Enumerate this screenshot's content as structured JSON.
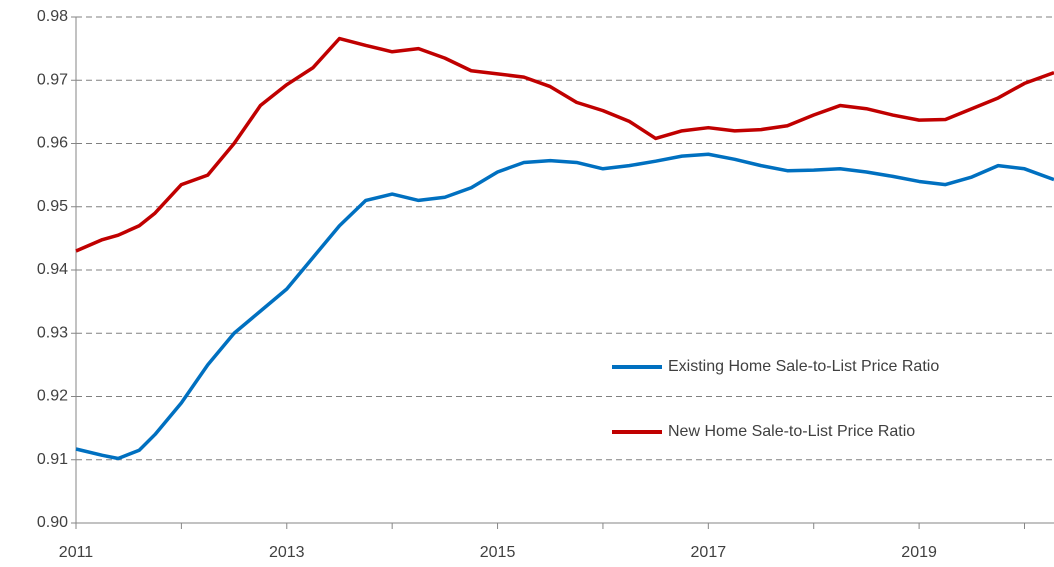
{
  "chart_data": {
    "type": "line",
    "x": [
      2011.0,
      2011.25,
      2011.4,
      2011.6,
      2011.75,
      2012.0,
      2012.25,
      2012.5,
      2012.75,
      2013.0,
      2013.25,
      2013.5,
      2013.75,
      2014.0,
      2014.25,
      2014.5,
      2014.75,
      2015.0,
      2015.25,
      2015.5,
      2015.75,
      2016.0,
      2016.25,
      2016.5,
      2016.75,
      2017.0,
      2017.25,
      2017.5,
      2017.75,
      2018.0,
      2018.25,
      2018.5,
      2018.75,
      2019.0,
      2019.25,
      2019.5,
      2019.75,
      2020.0,
      2020.28
    ],
    "series": [
      {
        "name": "Existing Home Sale-to-List Price Ratio",
        "color": "#0070c0",
        "values": [
          0.9117,
          0.9107,
          0.9102,
          0.9115,
          0.914,
          0.919,
          0.925,
          0.93,
          0.9335,
          0.937,
          0.942,
          0.947,
          0.951,
          0.952,
          0.951,
          0.9515,
          0.953,
          0.9555,
          0.957,
          0.9573,
          0.957,
          0.956,
          0.9565,
          0.9572,
          0.958,
          0.9583,
          0.9575,
          0.9565,
          0.9557,
          0.9558,
          0.956,
          0.9555,
          0.9548,
          0.954,
          0.9535,
          0.9547,
          0.9565,
          0.956,
          0.9543
        ]
      },
      {
        "name": "New Home Sale-to-List Price Ratio",
        "color": "#c00000",
        "values": [
          0.943,
          0.9448,
          0.9455,
          0.947,
          0.949,
          0.9535,
          0.955,
          0.96,
          0.966,
          0.9693,
          0.972,
          0.9766,
          0.9755,
          0.9745,
          0.975,
          0.9735,
          0.9715,
          0.971,
          0.9705,
          0.969,
          0.9665,
          0.9652,
          0.9635,
          0.9608,
          0.962,
          0.9625,
          0.962,
          0.9622,
          0.9628,
          0.9645,
          0.966,
          0.9655,
          0.9645,
          0.9637,
          0.9638,
          0.9655,
          0.9672,
          0.9695,
          0.9712
        ]
      }
    ],
    "xlim": [
      2011,
      2020.28
    ],
    "xticks": [
      2011,
      2013,
      2015,
      2017,
      2019
    ],
    "xminorticks": [
      2012,
      2014,
      2016,
      2018,
      2020
    ],
    "ylim": [
      0.9,
      0.98
    ],
    "yticks": [
      {
        "value": 0.9,
        "label": "0.90"
      },
      0.91,
      0.92,
      0.93,
      0.94,
      0.95,
      0.96,
      0.97,
      0.98
    ],
    "grid": true
  }
}
